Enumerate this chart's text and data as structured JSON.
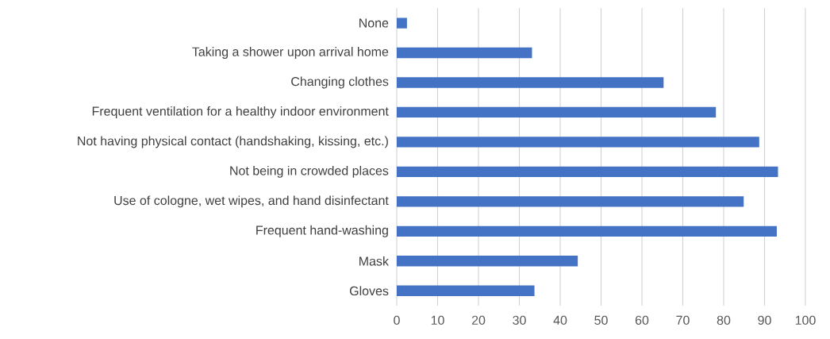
{
  "chart_data": {
    "type": "bar",
    "orientation": "horizontal",
    "categories": [
      "None",
      "Taking a shower upon arrival home",
      "Changing clothes",
      "Frequent ventilation for a healthy indoor environment",
      "Not having physical contact (handshaking, kissing, etc.)",
      "Not being in crowded places",
      "Use of cologne, wet wipes, and hand disinfectant",
      "Frequent hand-washing",
      "Mask",
      "Gloves"
    ],
    "values": [
      2.5,
      33.1,
      65.3,
      78.1,
      88.7,
      93.3,
      84.9,
      93.0,
      44.3,
      33.7
    ],
    "color": "#4472c4",
    "xlim": [
      0,
      100
    ],
    "xticks": [
      0,
      10,
      20,
      30,
      40,
      50,
      60,
      70,
      80,
      90,
      100
    ],
    "grid": "x"
  }
}
